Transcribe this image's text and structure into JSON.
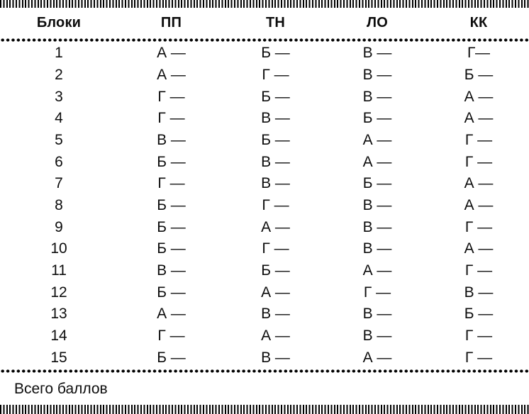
{
  "table": {
    "headers": [
      "Блоки",
      "ПП",
      "ТН",
      "ЛО",
      "КК"
    ],
    "rows": [
      [
        "1",
        "А —",
        "Б —",
        "В —",
        "Г—"
      ],
      [
        "2",
        "А —",
        "Г —",
        "В —",
        "Б —"
      ],
      [
        "3",
        "Г —",
        "Б —",
        "В —",
        "А —"
      ],
      [
        "4",
        "Г —",
        "В —",
        "Б —",
        "А —"
      ],
      [
        "5",
        "В —",
        "Б —",
        "А —",
        "Г —"
      ],
      [
        "6",
        "Б —",
        "В —",
        "А —",
        "Г —"
      ],
      [
        "7",
        "Г —",
        "В —",
        "Б —",
        "А —"
      ],
      [
        "8",
        "Б —",
        "Г —",
        "В —",
        "А —"
      ],
      [
        "9",
        "Б —",
        "А —",
        "В —",
        "Г —"
      ],
      [
        "10",
        "Б —",
        "Г —",
        "В —",
        "А —"
      ],
      [
        "11",
        "В —",
        "Б —",
        "А —",
        "Г —"
      ],
      [
        "12",
        "Б —",
        "А —",
        "Г —",
        "В —"
      ],
      [
        "13",
        "А —",
        "В —",
        "В —",
        "Б —"
      ],
      [
        "14",
        "Г —",
        "А —",
        "В —",
        "Г —"
      ],
      [
        "15",
        "Б —",
        "В —",
        "А —",
        "Г —"
      ]
    ]
  },
  "footer": {
    "total_label": "Всего баллов"
  },
  "colors": {
    "ink": "#0d0d0d",
    "background": "#ffffff"
  }
}
